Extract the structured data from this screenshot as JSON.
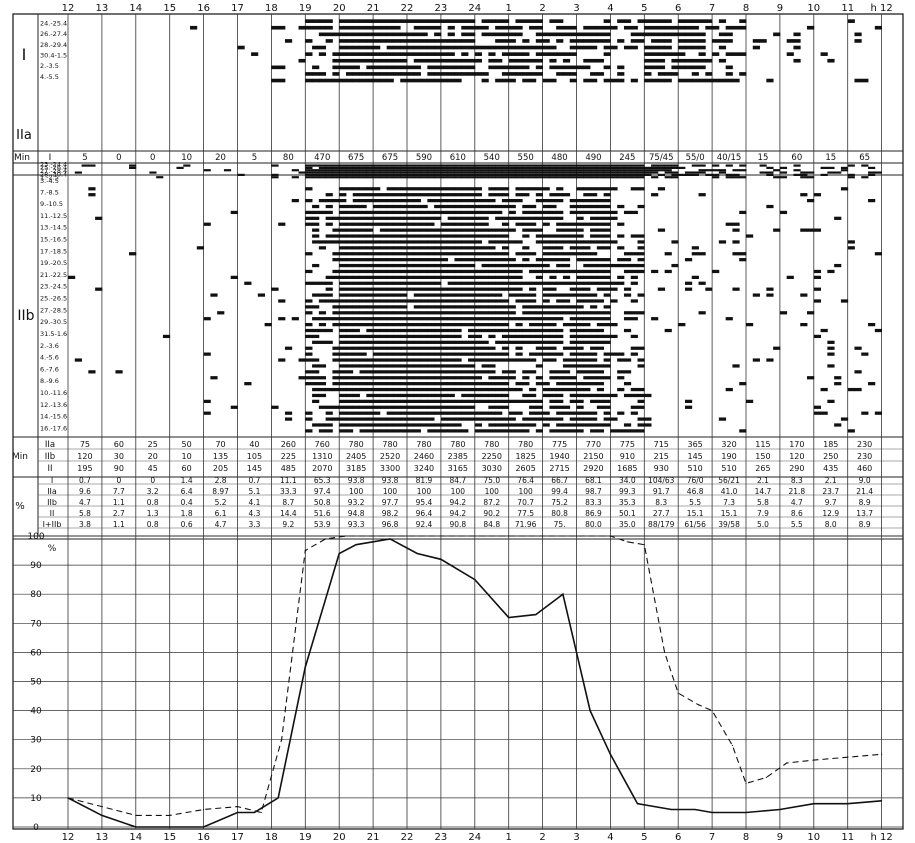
{
  "hour_labels": [
    "12",
    "13",
    "14",
    "15",
    "16",
    "17",
    "18",
    "19",
    "20",
    "21",
    "22",
    "23",
    "24",
    "1",
    "2",
    "3",
    "4",
    "5",
    "6",
    "7",
    "8",
    "9",
    "10",
    "11",
    "h 12"
  ],
  "groups": {
    "I": "I",
    "IIa": "IIa",
    "IIb": "IIb"
  },
  "dates": {
    "I": [
      "24.-25.4",
      "26.-27.4",
      "28.-29.4",
      "30.4-1.5",
      "2.-3.5",
      "4.-5.5"
    ],
    "IIa": [
      "23.-24.4",
      "25.-26.4",
      "27.-28.4",
      "28.-30.4",
      "1.-2.5",
      "3.-4.5"
    ],
    "IIb": [
      "7.-8.5",
      "9.-10.5",
      "11.-12.5",
      "13.-14.5",
      "15.-16.5",
      "17.-18.5",
      "19.-20.5",
      "21.-22.5",
      "23.-24.5",
      "25.-26.5",
      "27.-28.5",
      "29.-30.5",
      "31.5-1.6",
      "2.-3.6",
      "4.-5.6",
      "6.-7.6",
      "8.-9.6",
      "10.-11.6",
      "12.-13.6",
      "14.-15.6",
      "16.-17.6"
    ]
  },
  "min_I_row": {
    "label_min": "Min",
    "label_group": "I",
    "values": [
      "5",
      "0",
      "0",
      "10",
      "20",
      "5",
      "80",
      "470",
      "675",
      "675",
      "590",
      "610",
      "540",
      "550",
      "480",
      "490",
      "245",
      "75/45",
      "55/0",
      "40/15",
      "15",
      "60",
      "15",
      "65"
    ]
  },
  "min_table": {
    "label": "Min",
    "rows": [
      {
        "label": "IIa",
        "values": [
          "75",
          "60",
          "25",
          "50",
          "70",
          "40",
          "260",
          "760",
          "780",
          "780",
          "780",
          "780",
          "780",
          "780",
          "775",
          "770",
          "775",
          "715",
          "365",
          "320",
          "115",
          "170",
          "185",
          "230"
        ]
      },
      {
        "label": "IIb",
        "values": [
          "120",
          "30",
          "20",
          "10",
          "135",
          "105",
          "225",
          "1310",
          "2405",
          "2520",
          "2460",
          "2385",
          "2250",
          "1825",
          "1940",
          "2150",
          "910",
          "215",
          "145",
          "190",
          "150",
          "120",
          "250",
          "230"
        ]
      },
      {
        "label": "II",
        "values": [
          "195",
          "90",
          "45",
          "60",
          "205",
          "145",
          "485",
          "2070",
          "3185",
          "3300",
          "3240",
          "3165",
          "3030",
          "2605",
          "2715",
          "2920",
          "1685",
          "930",
          "510",
          "510",
          "265",
          "290",
          "435",
          "460"
        ]
      }
    ]
  },
  "pct_table": {
    "label": "%",
    "rows": [
      {
        "label": "I",
        "values": [
          "0.7",
          "0",
          "0",
          "1.4",
          "2.8",
          "0.7",
          "11.1",
          "65.3",
          "93.8",
          "93.8",
          "81.9",
          "84.7",
          "75.0",
          "76.4",
          "66.7",
          "68.1",
          "34.0",
          "104/63",
          "76/0",
          "56/21",
          "2.1",
          "8.3",
          "2.1",
          "9.0"
        ]
      },
      {
        "label": "IIa",
        "values": [
          "9.6",
          "7.7",
          "3.2",
          "6.4",
          "8.97",
          "5.1",
          "33.3",
          "97.4",
          "100",
          "100",
          "100",
          "100",
          "100",
          "100",
          "99.4",
          "98.7",
          "99.3",
          "91.7",
          "46.8",
          "41.0",
          "14.7",
          "21.8",
          "23.7",
          "21.4"
        ]
      },
      {
        "label": "IIb",
        "values": [
          "4.7",
          "1.1",
          "0.8",
          "0.4",
          "5.2",
          "4.1",
          "8.7",
          "50.8",
          "93.2",
          "97.7",
          "95.4",
          "94.2",
          "87.2",
          "70.7",
          "75.2",
          "83.3",
          "35.3",
          "8.3",
          "5.5",
          "7.3",
          "5.8",
          "4.7",
          "9.7",
          "8.9"
        ]
      },
      {
        "label": "II",
        "values": [
          "5.8",
          "2.7",
          "1.3",
          "1.8",
          "6.1",
          "4.3",
          "14.4",
          "51.6",
          "94.8",
          "98.2",
          "96.4",
          "94.2",
          "90.2",
          "77.5",
          "80.8",
          "86.9",
          "50.1",
          "27.7",
          "15.1",
          "15.1",
          "7.9",
          "8.6",
          "12.9",
          "13.7"
        ]
      },
      {
        "label": "I+IIb",
        "values": [
          "3.8",
          "1.1",
          "0.8",
          "0.6",
          "4.7",
          "3.3",
          "9.2",
          "53.9",
          "93.3",
          "96.8",
          "92.4",
          "90.8",
          "84.8",
          "71.96",
          "75.",
          "80.0",
          "35.0",
          "88/179",
          "61/56",
          "39/58",
          "5.0",
          "5.5",
          "8.0",
          "8.9"
        ]
      }
    ]
  },
  "chart_data": {
    "type": "line",
    "xlabel": "",
    "ylabel": "%",
    "ylim": [
      0,
      100
    ],
    "yticks": [
      "0",
      "10",
      "20",
      "30",
      "40",
      "50",
      "60",
      "70",
      "80",
      "90",
      "100"
    ],
    "grid": true,
    "x_hours": [
      12,
      13,
      14,
      15,
      16,
      17,
      18,
      19,
      20,
      21,
      22,
      23,
      24,
      25,
      26,
      27,
      28,
      29,
      30,
      31,
      32,
      33,
      34,
      35,
      36
    ],
    "series": [
      {
        "style": "solid",
        "x": [
          12.0,
          13.0,
          14.0,
          15.0,
          16.0,
          17.0,
          17.5,
          18.2,
          19.0,
          20.0,
          20.5,
          21.5,
          22.3,
          23.0,
          24.0,
          25.0,
          25.8,
          26.6,
          27.4,
          28.0,
          28.8,
          29.8,
          30.5,
          31.0,
          32.0,
          33.0,
          34.0,
          35.0,
          36.0
        ],
        "y": [
          10,
          4,
          0,
          0,
          0,
          5,
          5,
          10,
          55,
          94,
          97,
          99,
          94,
          92,
          85,
          72,
          73,
          80,
          40,
          25,
          8,
          6,
          6,
          5,
          5,
          6,
          8,
          8,
          9
        ]
      },
      {
        "style": "dashed",
        "x": [
          12.0,
          13.0,
          14.0,
          15.0,
          16.0,
          17.0,
          17.7,
          18.3,
          19.0,
          19.6,
          20.2,
          21.0,
          22.0,
          23.0,
          24.0,
          25.0,
          26.0,
          27.0,
          28.0,
          28.5,
          29.0,
          29.6,
          30.0,
          30.6,
          31.0,
          31.6,
          32.0,
          32.6,
          33.2,
          34.0,
          35.0,
          36.0
        ],
        "y": [
          10,
          7,
          4,
          4,
          6,
          7,
          5,
          30,
          95,
          99,
          100,
          100,
          100,
          100,
          100,
          100,
          100,
          100,
          100,
          98,
          97,
          60,
          46,
          42,
          40,
          28,
          15,
          17,
          22,
          23,
          24,
          25
        ]
      }
    ]
  }
}
